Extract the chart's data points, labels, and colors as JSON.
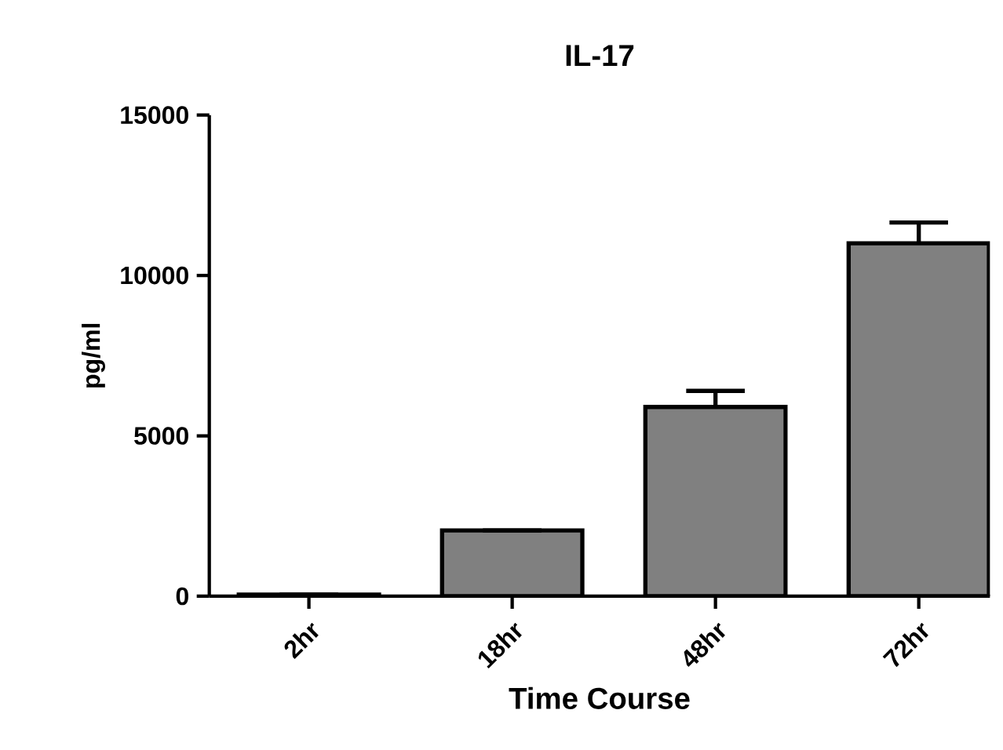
{
  "chart_data": {
    "type": "bar",
    "title": "IL-17",
    "xlabel": "Time Course",
    "ylabel": "pg/ml",
    "categories": [
      "2hr",
      "18hr",
      "48hr",
      "72hr"
    ],
    "values": [
      50,
      2050,
      5900,
      11000
    ],
    "errors": [
      null,
      null,
      [
        5900,
        6400
      ],
      [
        11000,
        11650
      ]
    ],
    "color": "#808080",
    "ylim": [
      0,
      15000
    ],
    "yticks": [
      0,
      5000,
      10000,
      15000
    ],
    "grid": false
  }
}
